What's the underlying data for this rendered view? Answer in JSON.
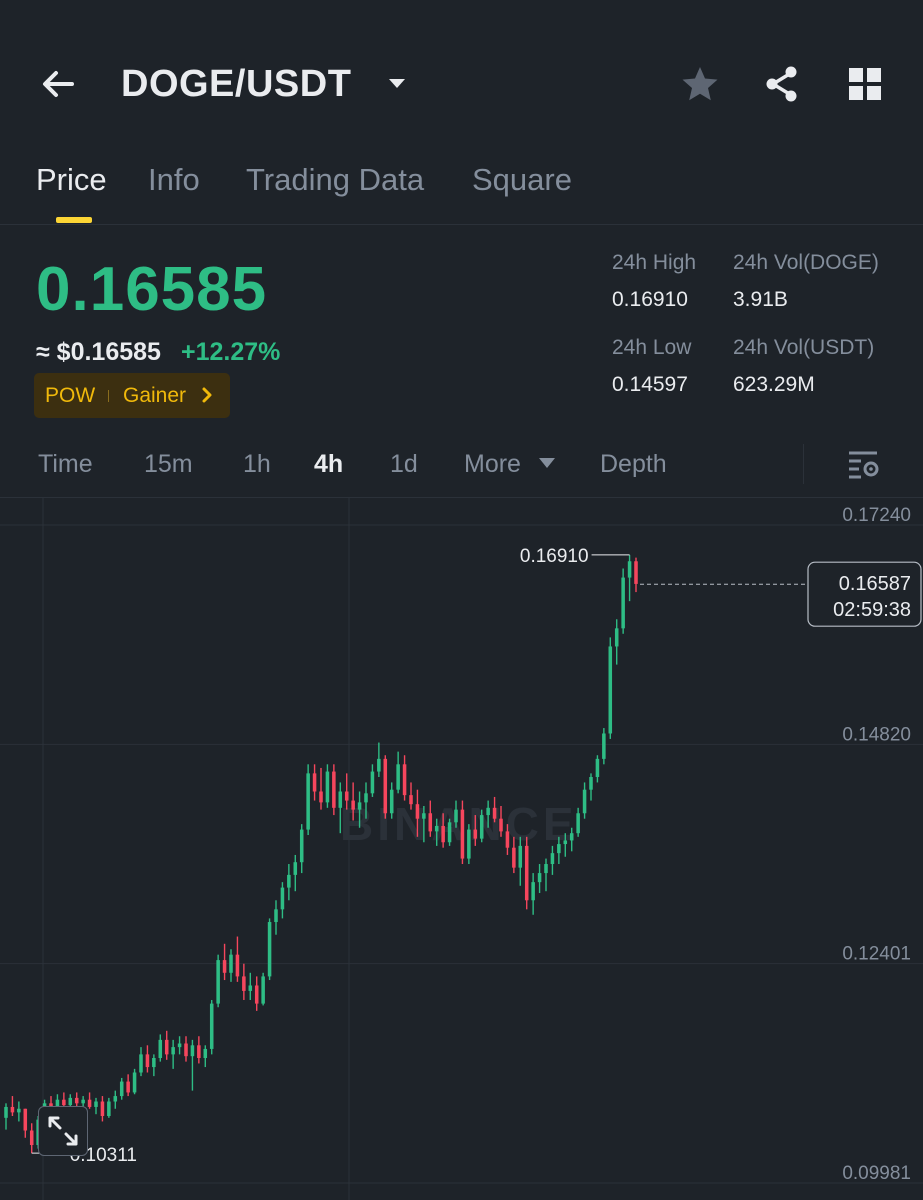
{
  "header": {
    "title": "DOGE/USDT",
    "icons": [
      "back-arrow-icon",
      "caret-down-icon",
      "star-icon",
      "share-icon",
      "grid-icon"
    ]
  },
  "tabs": [
    {
      "label": "Price",
      "active": true
    },
    {
      "label": "Info",
      "active": false
    },
    {
      "label": "Trading Data",
      "active": false
    },
    {
      "label": "Square",
      "active": false
    }
  ],
  "ticker": {
    "last_price": "0.16585",
    "usd_approx": "≈ $0.16585",
    "change_pct": "+12.27%",
    "tags": [
      "POW",
      "Gainer"
    ],
    "stats": {
      "high_label": "24h High",
      "high_value": "0.16910",
      "vol_base_label": "24h Vol(DOGE)",
      "vol_base_value": "3.91B",
      "low_label": "24h Low",
      "low_value": "0.14597",
      "vol_quote_label": "24h Vol(USDT)",
      "vol_quote_value": "623.29M"
    }
  },
  "intervals": {
    "items": [
      {
        "label": "Time",
        "active": false
      },
      {
        "label": "15m",
        "active": false
      },
      {
        "label": "1h",
        "active": false
      },
      {
        "label": "4h",
        "active": true
      },
      {
        "label": "1d",
        "active": false
      },
      {
        "label": "More",
        "active": false
      },
      {
        "label": "Depth",
        "active": false
      }
    ]
  },
  "colors": {
    "up": "#2ebd85",
    "down": "#f6465d",
    "accent": "#fcd535",
    "background": "#1e2329"
  },
  "chart_data": {
    "type": "candlestick",
    "interval": "4h",
    "y_axis_ticks": [
      "0.17240",
      "0.14820",
      "0.12401",
      "0.09981"
    ],
    "ylim": [
      0.09981,
      0.1724
    ],
    "high_marker": "0.16910",
    "low_marker": "0.10311",
    "current_price": "0.16587",
    "countdown": "02:59:38",
    "watermark": "BINANCE",
    "candles": [
      [
        0.107,
        0.1086,
        0.1057,
        0.1082
      ],
      [
        0.1082,
        0.1094,
        0.1072,
        0.1076
      ],
      [
        0.1076,
        0.1088,
        0.1066,
        0.108
      ],
      [
        0.108,
        0.108,
        0.1048,
        0.1056
      ],
      [
        0.1056,
        0.1064,
        0.1031,
        0.104
      ],
      [
        0.104,
        0.1072,
        0.1036,
        0.1068
      ],
      [
        0.1068,
        0.109,
        0.1062,
        0.1086
      ],
      [
        0.1086,
        0.1094,
        0.107,
        0.1076
      ],
      [
        0.1076,
        0.1096,
        0.1072,
        0.109
      ],
      [
        0.109,
        0.1098,
        0.108,
        0.1084
      ],
      [
        0.1084,
        0.1096,
        0.1078,
        0.1092
      ],
      [
        0.1092,
        0.1098,
        0.1082,
        0.1086
      ],
      [
        0.1086,
        0.1094,
        0.1076,
        0.109
      ],
      [
        0.109,
        0.1098,
        0.108,
        0.1082
      ],
      [
        0.1082,
        0.1092,
        0.1074,
        0.1088
      ],
      [
        0.1088,
        0.1094,
        0.1066,
        0.1072
      ],
      [
        0.1072,
        0.1092,
        0.107,
        0.1088
      ],
      [
        0.1088,
        0.11,
        0.108,
        0.1094
      ],
      [
        0.1094,
        0.1114,
        0.109,
        0.111
      ],
      [
        0.111,
        0.1118,
        0.1094,
        0.1098
      ],
      [
        0.1098,
        0.1124,
        0.1096,
        0.112
      ],
      [
        0.112,
        0.1148,
        0.1116,
        0.114
      ],
      [
        0.114,
        0.115,
        0.112,
        0.1126
      ],
      [
        0.1126,
        0.114,
        0.1116,
        0.1136
      ],
      [
        0.1136,
        0.1162,
        0.1132,
        0.1156
      ],
      [
        0.1156,
        0.1166,
        0.1134,
        0.114
      ],
      [
        0.114,
        0.1156,
        0.1124,
        0.1148
      ],
      [
        0.1148,
        0.116,
        0.114,
        0.1152
      ],
      [
        0.1152,
        0.116,
        0.1132,
        0.1138
      ],
      [
        0.1138,
        0.1156,
        0.11,
        0.115
      ],
      [
        0.115,
        0.116,
        0.113,
        0.1136
      ],
      [
        0.1136,
        0.115,
        0.1126,
        0.1146
      ],
      [
        0.1146,
        0.12,
        0.114,
        0.1196
      ],
      [
        0.1196,
        0.125,
        0.1192,
        0.1244
      ],
      [
        0.1244,
        0.1262,
        0.1222,
        0.123
      ],
      [
        0.123,
        0.1256,
        0.122,
        0.125
      ],
      [
        0.125,
        0.127,
        0.122,
        0.1226
      ],
      [
        0.1226,
        0.124,
        0.12,
        0.121
      ],
      [
        0.121,
        0.123,
        0.12,
        0.1216
      ],
      [
        0.1216,
        0.1226,
        0.1188,
        0.1196
      ],
      [
        0.1196,
        0.123,
        0.1194,
        0.1226
      ],
      [
        0.1226,
        0.129,
        0.1222,
        0.1286
      ],
      [
        0.1286,
        0.131,
        0.1272,
        0.13
      ],
      [
        0.13,
        0.133,
        0.129,
        0.1324
      ],
      [
        0.1324,
        0.135,
        0.131,
        0.1338
      ],
      [
        0.1338,
        0.136,
        0.132,
        0.1352
      ],
      [
        0.1352,
        0.1394,
        0.134,
        0.1388
      ],
      [
        0.1388,
        0.146,
        0.1382,
        0.145
      ],
      [
        0.145,
        0.146,
        0.142,
        0.143
      ],
      [
        0.143,
        0.1456,
        0.141,
        0.1418
      ],
      [
        0.1418,
        0.146,
        0.1412,
        0.1452
      ],
      [
        0.1452,
        0.146,
        0.1404,
        0.1412
      ],
      [
        0.1412,
        0.144,
        0.1384,
        0.143
      ],
      [
        0.143,
        0.145,
        0.141,
        0.142
      ],
      [
        0.142,
        0.144,
        0.1398,
        0.141
      ],
      [
        0.141,
        0.143,
        0.139,
        0.1418
      ],
      [
        0.1418,
        0.144,
        0.14,
        0.1428
      ],
      [
        0.1428,
        0.146,
        0.1424,
        0.1452
      ],
      [
        0.1452,
        0.1484,
        0.1446,
        0.1466
      ],
      [
        0.1466,
        0.147,
        0.14,
        0.1406
      ],
      [
        0.1406,
        0.144,
        0.14,
        0.1432
      ],
      [
        0.1432,
        0.1474,
        0.1428,
        0.146
      ],
      [
        0.146,
        0.147,
        0.142,
        0.1426
      ],
      [
        0.1426,
        0.144,
        0.141,
        0.1416
      ],
      [
        0.1416,
        0.1432,
        0.138,
        0.14
      ],
      [
        0.14,
        0.1414,
        0.1374,
        0.1406
      ],
      [
        0.1406,
        0.142,
        0.138,
        0.1386
      ],
      [
        0.1386,
        0.14,
        0.137,
        0.1392
      ],
      [
        0.1392,
        0.1406,
        0.1368,
        0.1374
      ],
      [
        0.1374,
        0.14,
        0.137,
        0.1396
      ],
      [
        0.1396,
        0.142,
        0.139,
        0.141
      ],
      [
        0.141,
        0.142,
        0.135,
        0.1356
      ],
      [
        0.1356,
        0.1394,
        0.135,
        0.1388
      ],
      [
        0.1388,
        0.1404,
        0.137,
        0.1378
      ],
      [
        0.1378,
        0.141,
        0.1374,
        0.1404
      ],
      [
        0.1404,
        0.142,
        0.139,
        0.1412
      ],
      [
        0.1412,
        0.1424,
        0.1396,
        0.14
      ],
      [
        0.14,
        0.1414,
        0.138,
        0.1386
      ],
      [
        0.1386,
        0.1394,
        0.136,
        0.1368
      ],
      [
        0.1368,
        0.138,
        0.134,
        0.1346
      ],
      [
        0.1346,
        0.138,
        0.1326,
        0.137
      ],
      [
        0.137,
        0.138,
        0.13,
        0.131
      ],
      [
        0.131,
        0.134,
        0.1294,
        0.133
      ],
      [
        0.133,
        0.135,
        0.1318,
        0.134
      ],
      [
        0.134,
        0.1356,
        0.132,
        0.135
      ],
      [
        0.135,
        0.137,
        0.1338,
        0.1362
      ],
      [
        0.1362,
        0.138,
        0.135,
        0.1372
      ],
      [
        0.1372,
        0.1384,
        0.1358,
        0.1376
      ],
      [
        0.1376,
        0.139,
        0.1364,
        0.1384
      ],
      [
        0.1384,
        0.1412,
        0.138,
        0.1406
      ],
      [
        0.1406,
        0.144,
        0.14,
        0.1432
      ],
      [
        0.1432,
        0.145,
        0.142,
        0.1446
      ],
      [
        0.1446,
        0.147,
        0.144,
        0.1466
      ],
      [
        0.1466,
        0.15,
        0.146,
        0.1494
      ],
      [
        0.1494,
        0.16,
        0.1488,
        0.159
      ],
      [
        0.159,
        0.162,
        0.157,
        0.161
      ],
      [
        0.161,
        0.1676,
        0.1604,
        0.1666
      ],
      [
        0.1666,
        0.1691,
        0.164,
        0.1684
      ],
      [
        0.1684,
        0.1688,
        0.165,
        0.1659
      ]
    ]
  }
}
